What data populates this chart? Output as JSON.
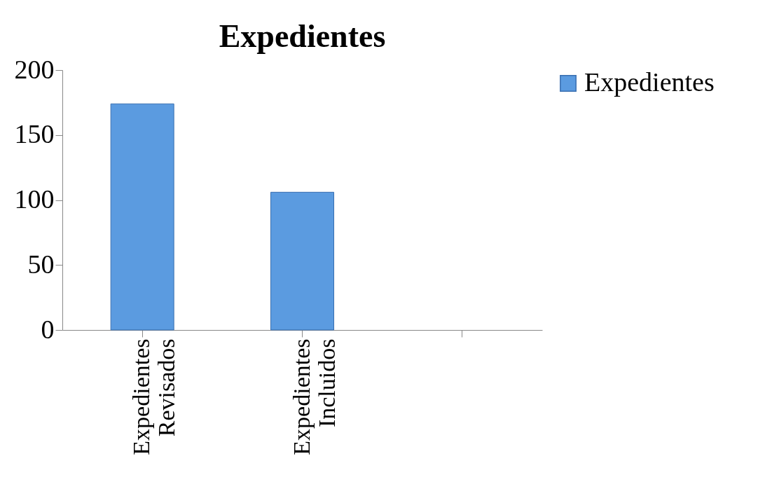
{
  "chart_data": {
    "type": "bar",
    "title": "Expedientes",
    "categories": [
      "Expedientes Revisados",
      "Expedientes Incluidos",
      null
    ],
    "series": [
      {
        "name": "Expedientes",
        "color": "#5b9be0",
        "values": [
          174,
          106,
          null
        ]
      }
    ],
    "ylim": [
      0,
      200
    ],
    "yticks": [
      0,
      50,
      100,
      150,
      200
    ],
    "grid": false,
    "legend": "right"
  }
}
